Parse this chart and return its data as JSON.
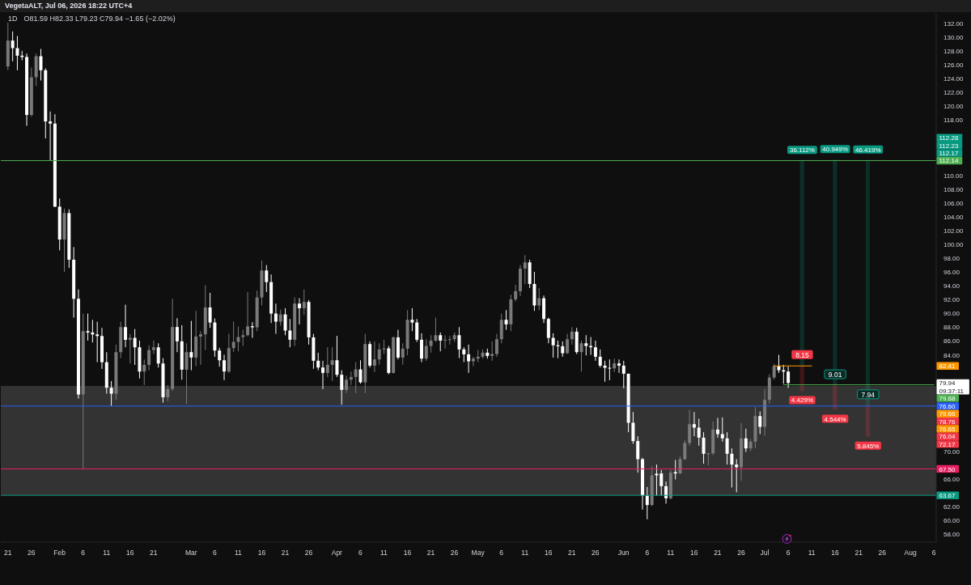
{
  "chart_data": {
    "type": "candlestick",
    "title": "1D",
    "subtitle": "O81.59 H82.33 L79.23 C79.94 −1.65 (−2.02%)",
    "annotations": [
      "VegetaALT, Jul 06, 2026 18:22 UTC+4",
      {
        "text": "8.15",
        "x": "2026-07-09",
        "y": 84.05
      },
      {
        "text": "9.01",
        "x": "2026-07-16",
        "y": 81.2
      },
      {
        "text": "7.94",
        "x": "2026-07-23",
        "y": 78.3
      },
      {
        "text": "36.112%",
        "x": "2026-07-09",
        "y": 112.17
      },
      {
        "text": "40.949%",
        "x": "2026-07-16",
        "y": 112.28
      },
      {
        "text": "46.419%",
        "x": "2026-07-23",
        "y": 112.23
      },
      {
        "text": "4.429%",
        "x": "2026-07-09",
        "y": 78.76
      },
      {
        "text": "4.544%",
        "x": "2026-07-16",
        "y": 76.04
      },
      {
        "text": "5.845%",
        "x": "2026-07-23",
        "y": 72.17
      },
      "112.28",
      "112.23",
      "112.17",
      "82.41",
      "79.94",
      "09:37:11",
      "79.68",
      "79.66",
      "78.76",
      "76.65",
      "76.04",
      "72.17"
    ],
    "x": [
      "2026-01-21",
      "2026-01-22",
      "2026-01-23",
      "2026-01-24",
      "2026-01-25",
      "2026-01-26",
      "2026-01-27",
      "2026-01-28",
      "2026-01-29",
      "2026-01-30",
      "2026-01-31",
      "2026-02-01",
      "2026-02-02",
      "2026-02-03",
      "2026-02-04",
      "2026-02-05",
      "2026-02-06",
      "2026-02-07",
      "2026-02-08",
      "2026-02-09",
      "2026-02-10",
      "2026-02-11",
      "2026-02-12",
      "2026-02-13",
      "2026-02-14",
      "2026-02-15",
      "2026-02-16",
      "2026-02-17",
      "2026-02-18",
      "2026-02-19",
      "2026-02-20",
      "2026-02-21",
      "2026-02-22",
      "2026-02-23",
      "2026-02-24",
      "2026-02-25",
      "2026-02-26",
      "2026-02-27",
      "2026-02-28",
      "2026-03-01",
      "2026-03-02",
      "2026-03-03",
      "2026-03-04",
      "2026-03-05",
      "2026-03-06",
      "2026-03-07",
      "2026-03-08",
      "2026-03-09",
      "2026-03-10",
      "2026-03-11",
      "2026-03-12",
      "2026-03-13",
      "2026-03-14",
      "2026-03-15",
      "2026-03-16",
      "2026-03-17",
      "2026-03-18",
      "2026-03-19",
      "2026-03-20",
      "2026-03-21",
      "2026-03-22",
      "2026-03-23",
      "2026-03-24",
      "2026-03-25",
      "2026-03-26",
      "2026-03-27",
      "2026-03-28",
      "2026-03-29",
      "2026-03-30",
      "2026-03-31",
      "2026-04-01",
      "2026-04-02",
      "2026-04-03",
      "2026-04-04",
      "2026-04-05",
      "2026-04-06",
      "2026-04-07",
      "2026-04-08",
      "2026-04-09",
      "2026-04-10",
      "2026-04-11",
      "2026-04-12",
      "2026-04-13",
      "2026-04-14",
      "2026-04-15",
      "2026-04-16",
      "2026-04-17",
      "2026-04-18",
      "2026-04-19",
      "2026-04-20",
      "2026-04-21",
      "2026-04-22",
      "2026-04-23",
      "2026-04-24",
      "2026-04-25",
      "2026-04-26",
      "2026-04-27",
      "2026-04-28",
      "2026-04-29",
      "2026-04-30",
      "2026-05-01",
      "2026-05-02",
      "2026-05-03",
      "2026-05-04",
      "2026-05-05",
      "2026-05-06",
      "2026-05-07",
      "2026-05-08",
      "2026-05-09",
      "2026-05-10",
      "2026-05-11",
      "2026-05-12",
      "2026-05-13",
      "2026-05-14",
      "2026-05-15",
      "2026-05-16",
      "2026-05-17",
      "2026-05-18",
      "2026-05-19",
      "2026-05-20",
      "2026-05-21",
      "2026-05-22",
      "2026-05-23",
      "2026-05-24",
      "2026-05-25",
      "2026-05-26",
      "2026-05-27",
      "2026-05-28",
      "2026-05-29",
      "2026-05-30",
      "2026-05-31",
      "2026-06-01",
      "2026-06-02",
      "2026-06-03",
      "2026-06-04",
      "2026-06-05",
      "2026-06-06",
      "2026-06-07",
      "2026-06-08",
      "2026-06-09",
      "2026-06-10",
      "2026-06-11",
      "2026-06-12",
      "2026-06-13",
      "2026-06-14",
      "2026-06-15",
      "2026-06-16",
      "2026-06-17",
      "2026-06-18",
      "2026-06-19",
      "2026-06-20",
      "2026-06-21",
      "2026-06-22",
      "2026-06-23",
      "2026-06-24",
      "2026-06-25",
      "2026-06-26",
      "2026-06-27",
      "2026-06-28",
      "2026-06-29",
      "2026-06-30",
      "2026-07-01",
      "2026-07-02",
      "2026-07-03",
      "2026-07-04",
      "2026-07-05",
      "2026-07-06"
    ],
    "ohlc": [
      [
        125.77,
        132.13,
        125.22,
        129.52
      ],
      [
        129.52,
        130.84,
        126.5,
        128.42
      ],
      [
        128.42,
        130.18,
        125.22,
        127.33
      ],
      [
        127.33,
        128.03,
        126.67,
        127.14
      ],
      [
        127.14,
        127.64,
        117.18,
        118.75
      ],
      [
        118.75,
        125.61,
        118.5,
        124.21
      ],
      [
        124.21,
        127.64,
        122.96,
        127.25
      ],
      [
        127.25,
        128.31,
        123.74,
        125.22
      ],
      [
        125.22,
        125.5,
        115.35,
        117.81
      ],
      [
        117.81,
        119.25,
        112.14,
        117.5
      ],
      [
        117.5,
        118.86,
        105.4,
        105.47
      ],
      [
        105.47,
        106.65,
        99.15,
        100.71
      ],
      [
        100.71,
        105.2,
        96.03,
        104.54
      ],
      [
        104.54,
        105.08,
        96.61,
        97.79
      ],
      [
        97.79,
        99.62,
        89.4,
        92.13
      ],
      [
        92.13,
        93.49,
        77.69,
        78.27
      ],
      [
        78.27,
        89.98,
        67.5,
        87.44
      ],
      [
        87.44,
        89.98,
        86.08,
        87.25
      ],
      [
        87.25,
        89.08,
        85.8,
        86.97
      ],
      [
        86.97,
        88.81,
        82.95,
        86.74
      ],
      [
        86.74,
        87.91,
        81.98,
        82.95
      ],
      [
        82.95,
        84.4,
        78.39,
        79.25
      ],
      [
        79.25,
        80.22,
        76.6,
        78.39
      ],
      [
        78.39,
        85.49,
        77.49,
        84.4
      ],
      [
        84.4,
        88.81,
        83.54,
        88.03
      ],
      [
        88.03,
        91.27,
        85.1,
        86.19
      ],
      [
        86.19,
        87.05,
        82.76,
        86.47
      ],
      [
        86.47,
        87.75,
        82.56,
        85.1
      ],
      [
        85.1,
        86.08,
        80.61,
        81.59
      ],
      [
        81.59,
        83.34,
        79.64,
        82.56
      ],
      [
        82.56,
        85.41,
        81.78,
        84.71
      ],
      [
        84.71,
        86.08,
        84.13,
        85.1
      ],
      [
        85.1,
        85.69,
        82.17,
        82.76
      ],
      [
        82.76,
        83.54,
        77.1,
        77.88
      ],
      [
        77.88,
        79.64,
        77.3,
        79.06
      ],
      [
        79.06,
        92.13,
        78.8,
        88.04
      ],
      [
        88.04,
        89.32,
        84.41,
        85.97
      ],
      [
        85.97,
        88.31,
        80.42,
        81.87
      ],
      [
        81.87,
        85.7,
        76.9,
        84.41
      ],
      [
        84.41,
        88.93,
        81.79,
        83.63
      ],
      [
        83.63,
        90.38,
        82.38,
        86.67
      ],
      [
        86.67,
        87.45,
        82.57,
        86.98
      ],
      [
        86.98,
        94.09,
        84.72,
        90.88
      ],
      [
        90.88,
        93.0,
        87.92,
        88.7
      ],
      [
        88.7,
        89.28,
        83.74,
        84.64
      ],
      [
        84.64,
        85.03,
        82.3,
        83.23
      ],
      [
        83.23,
        84.02,
        80.35,
        81.6
      ],
      [
        81.6,
        87.06,
        81.4,
        84.99
      ],
      [
        84.99,
        88.82,
        84.41,
        85.89
      ],
      [
        85.89,
        88.11,
        84.52,
        86.59
      ],
      [
        86.59,
        87.65,
        85.3,
        86.86
      ],
      [
        86.86,
        93.1,
        86.7,
        88.15
      ],
      [
        88.15,
        88.74,
        86.48,
        88.0
      ],
      [
        88.0,
        93.31,
        87.45,
        92.33
      ],
      [
        92.33,
        97.68,
        91.16,
        96.23
      ],
      [
        96.23,
        97.01,
        93.11,
        94.55
      ],
      [
        94.55,
        95.65,
        88.62,
        89.99
      ],
      [
        89.99,
        91.43,
        87.06,
        88.82
      ],
      [
        88.82,
        90.57,
        88.23,
        89.87
      ],
      [
        89.87,
        90.77,
        86.86,
        87.53
      ],
      [
        87.53,
        89.21,
        85.11,
        86.2
      ],
      [
        86.2,
        92.33,
        85.3,
        91.43
      ],
      [
        91.43,
        92.21,
        88.43,
        90.77
      ],
      [
        90.77,
        93.5,
        89.79,
        91.67
      ],
      [
        91.67,
        91.94,
        85.5,
        86.55
      ],
      [
        86.55,
        87.06,
        81.99,
        83.16
      ],
      [
        83.16,
        84.33,
        81.79,
        82.18
      ],
      [
        82.18,
        83.16,
        79.06,
        81.4
      ],
      [
        81.4,
        85.11,
        80.82,
        82.57
      ],
      [
        82.57,
        85.11,
        80.23,
        83.23
      ],
      [
        83.23,
        86.75,
        80.81,
        81.13
      ],
      [
        81.13,
        81.79,
        76.8,
        78.94
      ],
      [
        78.94,
        81.01,
        78.5,
        80.42
      ],
      [
        80.42,
        81.59,
        79.64,
        80.81
      ],
      [
        80.81,
        82.96,
        78.47,
        81.91
      ],
      [
        81.91,
        83.23,
        79.84,
        80.03
      ],
      [
        80.03,
        87.06,
        78.47,
        85.58
      ],
      [
        85.58,
        85.97,
        82.18,
        82.45
      ],
      [
        82.45,
        85.97,
        81.52,
        83.35
      ],
      [
        83.35,
        85.69,
        82.57,
        84.8
      ],
      [
        84.8,
        86.2,
        84.13,
        84.95
      ],
      [
        84.95,
        85.3,
        81.2,
        81.4
      ],
      [
        81.4,
        86.67,
        81.3,
        86.55
      ],
      [
        86.55,
        87.64,
        83.35,
        83.62
      ],
      [
        83.62,
        85.69,
        82.57,
        84.91
      ],
      [
        84.91,
        90.49,
        83.94,
        89.09
      ],
      [
        89.09,
        90.77,
        87.45,
        88.7
      ],
      [
        88.7,
        89.21,
        85.89,
        86.2
      ],
      [
        86.2,
        87.14,
        82.96,
        83.47
      ],
      [
        83.47,
        86.28,
        83.16,
        85.3
      ],
      [
        85.3,
        86.86,
        84.33,
        86.08
      ],
      [
        86.08,
        89.4,
        85.89,
        86.86
      ],
      [
        86.86,
        87.25,
        84.52,
        86.08
      ],
      [
        86.08,
        86.86,
        84.91,
        86.2
      ],
      [
        86.2,
        86.75,
        85.5,
        86.28
      ],
      [
        86.28,
        87.25,
        85.89,
        86.86
      ],
      [
        86.86,
        88.03,
        83.55,
        84.8
      ],
      [
        84.8,
        85.11,
        82.96,
        84.09
      ],
      [
        84.09,
        85.5,
        81.4,
        83.08
      ],
      [
        83.08,
        83.74,
        82.37,
        83.47
      ],
      [
        83.47,
        84.72,
        82.96,
        83.74
      ],
      [
        83.74,
        84.8,
        83.47,
        84.33
      ],
      [
        84.33,
        84.91,
        83.47,
        83.86
      ],
      [
        83.86,
        85.97,
        83.16,
        84.13
      ],
      [
        84.13,
        87.06,
        83.74,
        86.28
      ],
      [
        86.28,
        89.99,
        85.69,
        89.09
      ],
      [
        89.09,
        90.49,
        87.64,
        88.43
      ],
      [
        88.43,
        92.72,
        87.45,
        92.05
      ],
      [
        92.05,
        94.16,
        91.74,
        93.23
      ],
      [
        93.23,
        97.01,
        92.52,
        96.5
      ],
      [
        96.5,
        98.46,
        94.28,
        97.4
      ],
      [
        97.4,
        97.79,
        93.69,
        94.28
      ],
      [
        94.28,
        96.04,
        90.38,
        91.16
      ],
      [
        91.16,
        93.69,
        90.49,
        92.21
      ],
      [
        92.21,
        92.6,
        88.62,
        89.21
      ],
      [
        89.21,
        89.4,
        85.69,
        86.47
      ],
      [
        86.47,
        87.14,
        83.62,
        85.4
      ],
      [
        85.4,
        86.08,
        83.54,
        85.26
      ],
      [
        85.26,
        85.97,
        83.74,
        84.25
      ],
      [
        84.25,
        87.06,
        84.13,
        86.28
      ],
      [
        86.28,
        88.03,
        85.5,
        87.37
      ],
      [
        87.37,
        87.92,
        84.13,
        84.41
      ],
      [
        84.41,
        86.08,
        81.59,
        85.69
      ],
      [
        85.69,
        86.86,
        83.94,
        85.3
      ],
      [
        85.3,
        86.59,
        84.01,
        85.11
      ],
      [
        85.11,
        86.08,
        83.16,
        83.74
      ],
      [
        83.74,
        84.8,
        82.18,
        82.45
      ],
      [
        82.45,
        83.16,
        80.11,
        82.14
      ],
      [
        82.14,
        83.35,
        80.34,
        82.06
      ],
      [
        82.06,
        83.47,
        81.52,
        82.77
      ],
      [
        82.77,
        83.35,
        81.4,
        82.45
      ],
      [
        82.45,
        83.16,
        79.17,
        81.28
      ],
      [
        81.28,
        81.3,
        72.81,
        74.18
      ],
      [
        74.18,
        75.74,
        71.14,
        71.53
      ],
      [
        71.53,
        72.23,
        66.96,
        68.91
      ],
      [
        68.91,
        69.1,
        61.61,
        63.64
      ],
      [
        63.64,
        64.89,
        60.21,
        62.27
      ],
      [
        62.27,
        67.86,
        62.1,
        66.57
      ],
      [
        66.8,
        68.13,
        63.64,
        66.57
      ],
      [
        66.84,
        67.35,
        63.64,
        65.0
      ],
      [
        65.0,
        65.67,
        62.47,
        63.25
      ],
      [
        63.25,
        67.35,
        63.1,
        66.96
      ],
      [
        67.04,
        68.79,
        65.98,
        66.84
      ],
      [
        66.84,
        69.3,
        66.77,
        68.91
      ],
      [
        68.91,
        71.64,
        68.8,
        71.25
      ],
      [
        71.25,
        76.05,
        70.86,
        73.98
      ],
      [
        73.98,
        75.74,
        72.23,
        73.48
      ],
      [
        73.48,
        74.76,
        70.86,
        72.03
      ],
      [
        72.03,
        72.81,
        68.25,
        69.69
      ],
      [
        69.69,
        69.89,
        68.0,
        69.75
      ],
      [
        69.75,
        74.37,
        69.5,
        73.2
      ],
      [
        73.2,
        74.88,
        72.03,
        72.54
      ],
      [
        72.54,
        74.96,
        71.45,
        71.92
      ],
      [
        71.92,
        72.81,
        68.13,
        69.69
      ],
      [
        69.69,
        70.47,
        64.81,
        68.13
      ],
      [
        68.13,
        68.91,
        64.11,
        67.74
      ],
      [
        67.74,
        74.1,
        65.79,
        71.92
      ],
      [
        71.92,
        73.32,
        69.96,
        70.47
      ],
      [
        70.47,
        71.84,
        70.08,
        71.45
      ],
      [
        71.45,
        76.44,
        70.47,
        75.15
      ],
      [
        75.15,
        75.82,
        72.54,
        73.59
      ],
      [
        73.59,
        79.06,
        72.3,
        77.5
      ],
      [
        77.5,
        81.2,
        76.91,
        80.73
      ],
      [
        80.73,
        82.69,
        80.42,
        82.38
      ],
      [
        82.38,
        84.01,
        81.4,
        81.79
      ],
      [
        81.79,
        82.57,
        79.84,
        81.59
      ],
      [
        81.59,
        82.33,
        79.23,
        79.94
      ]
    ],
    "colors": [
      "#7a7a7a",
      "#ffffff",
      "#ffffff",
      "#ffffff",
      "#ffffff",
      "#7a7a7a",
      "#7a7a7a",
      "#ffffff",
      "#ffffff",
      "#ffffff",
      "#ffffff",
      "#ffffff",
      "#7a7a7a",
      "#ffffff",
      "#ffffff",
      "#ffffff",
      "#7a7a7a",
      "#ffffff",
      "#ffffff",
      "#ffffff",
      "#ffffff",
      "#ffffff",
      "#ffffff",
      "#7a7a7a",
      "#7a7a7a",
      "#ffffff",
      "#7a7a7a",
      "#ffffff",
      "#ffffff",
      "#7a7a7a",
      "#7a7a7a",
      "#7a7a7a",
      "#ffffff",
      "#ffffff",
      "#7a7a7a",
      "#7a7a7a",
      "#ffffff",
      "#ffffff",
      "#7a7a7a",
      "#ffffff",
      "#7a7a7a",
      "#7a7a7a",
      "#7a7a7a",
      "#ffffff",
      "#ffffff",
      "#ffffff",
      "#ffffff",
      "#7a7a7a",
      "#7a7a7a",
      "#7a7a7a",
      "#7a7a7a",
      "#7a7a7a",
      "#ffffff",
      "#7a7a7a",
      "#7a7a7a",
      "#ffffff",
      "#ffffff",
      "#ffffff",
      "#7a7a7a",
      "#ffffff",
      "#ffffff",
      "#7a7a7a",
      "#ffffff",
      "#7a7a7a",
      "#ffffff",
      "#ffffff",
      "#ffffff",
      "#ffffff",
      "#7a7a7a",
      "#7a7a7a",
      "#ffffff",
      "#ffffff",
      "#7a7a7a",
      "#7a7a7a",
      "#7a7a7a",
      "#ffffff",
      "#7a7a7a",
      "#ffffff",
      "#7a7a7a",
      "#7a7a7a",
      "#7a7a7a",
      "#ffffff",
      "#7a7a7a",
      "#ffffff",
      "#7a7a7a",
      "#7a7a7a",
      "#ffffff",
      "#ffffff",
      "#ffffff",
      "#7a7a7a",
      "#7a7a7a",
      "#7a7a7a",
      "#ffffff",
      "#7a7a7a",
      "#7a7a7a",
      "#7a7a7a",
      "#ffffff",
      "#ffffff",
      "#ffffff",
      "#7a7a7a",
      "#7a7a7a",
      "#7a7a7a",
      "#ffffff",
      "#7a7a7a",
      "#7a7a7a",
      "#7a7a7a",
      "#ffffff",
      "#7a7a7a",
      "#7a7a7a",
      "#7a7a7a",
      "#7a7a7a",
      "#ffffff",
      "#ffffff",
      "#7a7a7a",
      "#ffffff",
      "#ffffff",
      "#ffffff",
      "#ffffff",
      "#ffffff",
      "#7a7a7a",
      "#7a7a7a",
      "#ffffff",
      "#7a7a7a",
      "#ffffff",
      "#ffffff",
      "#ffffff",
      "#ffffff",
      "#ffffff",
      "#ffffff",
      "#7a7a7a",
      "#ffffff",
      "#ffffff",
      "#ffffff",
      "#ffffff",
      "#ffffff",
      "#ffffff",
      "#ffffff",
      "#7a7a7a",
      "#ffffff",
      "#ffffff",
      "#ffffff",
      "#7a7a7a",
      "#ffffff",
      "#7a7a7a",
      "#7a7a7a",
      "#7a7a7a",
      "#ffffff",
      "#ffffff",
      "#ffffff",
      "#7a7a7a",
      "#7a7a7a",
      "#ffffff",
      "#ffffff",
      "#ffffff",
      "#ffffff",
      "#ffffff",
      "#7a7a7a",
      "#ffffff",
      "#7a7a7a",
      "#7a7a7a",
      "#ffffff",
      "#7a7a7a",
      "#7a7a7a",
      "#7a7a7a",
      "#ffffff",
      "#ffffff",
      "#ffffff"
    ],
    "series": [
      {
        "type": "bar",
        "x": [
          "2026-07-09",
          "2026-07-16",
          "2026-07-23"
        ],
        "base": [
          82.41,
          79.66,
          76.65
        ],
        "values": [
          29.76,
          32.62,
          35.58
        ],
        "color": "#089981"
      },
      {
        "type": "bar",
        "x": [
          "2026-07-09",
          "2026-07-16",
          "2026-07-23"
        ],
        "base": [
          78.76,
          76.04,
          72.17
        ],
        "values": [
          3.65,
          3.62,
          4.48
        ],
        "color": "#f23645"
      },
      {
        "type": "line",
        "x": [
          "2026-07-05",
          "2026-08-06"
        ],
        "values": [
          79.68,
          79.68
        ],
        "color": "#4caf50"
      },
      {
        "type": "line",
        "x": [
          "2026-07-03",
          "2026-07-11"
        ],
        "values": [
          82.41,
          82.41
        ],
        "color": "#ff9800"
      }
    ],
    "ref_lines": [
      {
        "axis": "y",
        "value": 112.14,
        "label": "112.14",
        "color": "#4caf50"
      },
      {
        "axis": "y",
        "value": 76.6,
        "label": "76.60",
        "color": "#2962ff"
      },
      {
        "axis": "y",
        "value": 67.5,
        "label": "67.50",
        "color": "#e91e63"
      },
      {
        "axis": "y",
        "value": 63.67,
        "label": "63.67",
        "color": "#089981"
      }
    ],
    "bands": [
      {
        "axis": "y",
        "from": 63.67,
        "to": 79.5,
        "color": "#333333"
      }
    ],
    "xlim": [
      "2026-01-19T12:00",
      "2026-08-06T12:00"
    ],
    "xticks": [
      {
        "value": "2026-01-21",
        "label": "21"
      },
      {
        "value": "2026-01-26",
        "label": "26"
      },
      {
        "value": "2026-02-01",
        "label": "Feb"
      },
      {
        "value": "2026-02-06",
        "label": "6"
      },
      {
        "value": "2026-02-11",
        "label": "11"
      },
      {
        "value": "2026-02-16",
        "label": "16"
      },
      {
        "value": "2026-02-21",
        "label": "21"
      },
      {
        "value": "2026-03-01",
        "label": "Mar"
      },
      {
        "value": "2026-03-06",
        "label": "6"
      },
      {
        "value": "2026-03-11",
        "label": "11"
      },
      {
        "value": "2026-03-16",
        "label": "16"
      },
      {
        "value": "2026-03-21",
        "label": "21"
      },
      {
        "value": "2026-03-26",
        "label": "26"
      },
      {
        "value": "2026-04-01",
        "label": "Apr"
      },
      {
        "value": "2026-04-06",
        "label": "6"
      },
      {
        "value": "2026-04-11",
        "label": "11"
      },
      {
        "value": "2026-04-16",
        "label": "16"
      },
      {
        "value": "2026-04-21",
        "label": "21"
      },
      {
        "value": "2026-04-26",
        "label": "26"
      },
      {
        "value": "2026-05-01",
        "label": "May"
      },
      {
        "value": "2026-05-06",
        "label": "6"
      },
      {
        "value": "2026-05-11",
        "label": "11"
      },
      {
        "value": "2026-05-16",
        "label": "16"
      },
      {
        "value": "2026-05-21",
        "label": "21"
      },
      {
        "value": "2026-05-26",
        "label": "26"
      },
      {
        "value": "2026-06-01",
        "label": "Jun"
      },
      {
        "value": "2026-06-06",
        "label": "6"
      },
      {
        "value": "2026-06-11",
        "label": "11"
      },
      {
        "value": "2026-06-16",
        "label": "16"
      },
      {
        "value": "2026-06-21",
        "label": "21"
      },
      {
        "value": "2026-06-26",
        "label": "26"
      },
      {
        "value": "2026-07-01",
        "label": "Jul"
      },
      {
        "value": "2026-07-06",
        "label": "6"
      },
      {
        "value": "2026-07-11",
        "label": "11"
      },
      {
        "value": "2026-07-16",
        "label": "16"
      },
      {
        "value": "2026-07-21",
        "label": "21"
      },
      {
        "value": "2026-07-26",
        "label": "26"
      },
      {
        "value": "2026-08-01",
        "label": "Aug"
      },
      {
        "value": "2026-08-06",
        "label": "6"
      }
    ],
    "ylim": [
      56.9,
      133.4
    ],
    "yticks": [
      {
        "value": 58,
        "label": "58.00"
      },
      {
        "value": 60,
        "label": "60.00"
      },
      {
        "value": 62,
        "label": "62.00"
      },
      {
        "value": 66,
        "label": "66.00"
      },
      {
        "value": 70,
        "label": "70.00"
      },
      {
        "value": 84,
        "label": "84.00"
      },
      {
        "value": 86,
        "label": "86.00"
      },
      {
        "value": 88,
        "label": "88.00"
      },
      {
        "value": 90,
        "label": "90.00"
      },
      {
        "value": 92,
        "label": "92.00"
      },
      {
        "value": 94,
        "label": "94.00"
      },
      {
        "value": 96,
        "label": "96.00"
      },
      {
        "value": 98,
        "label": "98.00"
      },
      {
        "value": 100,
        "label": "100.00"
      },
      {
        "value": 102,
        "label": "102.00"
      },
      {
        "value": 104,
        "label": "104.00"
      },
      {
        "value": 106,
        "label": "106.00"
      },
      {
        "value": 108,
        "label": "108.00"
      },
      {
        "value": 110,
        "label": "110.00"
      },
      {
        "value": 118,
        "label": "118.00"
      },
      {
        "value": 120,
        "label": "120.00"
      },
      {
        "value": 122,
        "label": "122.00"
      },
      {
        "value": 124,
        "label": "124.00"
      },
      {
        "value": 126,
        "label": "126.00"
      },
      {
        "value": 128,
        "label": "128.00"
      },
      {
        "value": 130,
        "label": "130.00"
      },
      {
        "value": 132,
        "label": "132.00"
      }
    ]
  }
}
